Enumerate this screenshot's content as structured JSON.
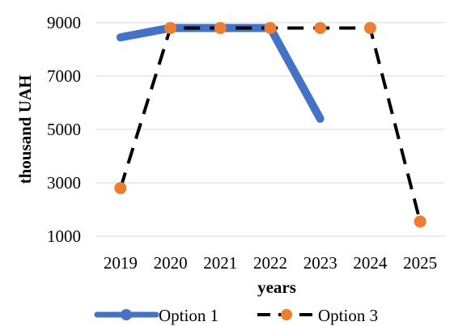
{
  "chart_data": {
    "type": "line",
    "title": "",
    "xlabel": "years",
    "ylabel": "thousand UAH",
    "x": [
      "2019",
      "2020",
      "2021",
      "2022",
      "2023",
      "2024",
      "2025"
    ],
    "ylim": [
      1000,
      9000
    ],
    "yticks": [
      "1000",
      "3000",
      "5000",
      "7000",
      "9000"
    ],
    "grid": "horizontal",
    "legend_position": "bottom",
    "series": [
      {
        "name": "Option 1",
        "values": [
          8450,
          8800,
          8800,
          8800,
          5400,
          null,
          null
        ],
        "color": "#4472C4",
        "style": "solid-thick"
      },
      {
        "name": "Option 3",
        "values": [
          2800,
          8800,
          8800,
          8800,
          8800,
          8800,
          1550
        ],
        "color": "#000000",
        "marker_color": "#ED7D31",
        "style": "dashed"
      }
    ]
  }
}
